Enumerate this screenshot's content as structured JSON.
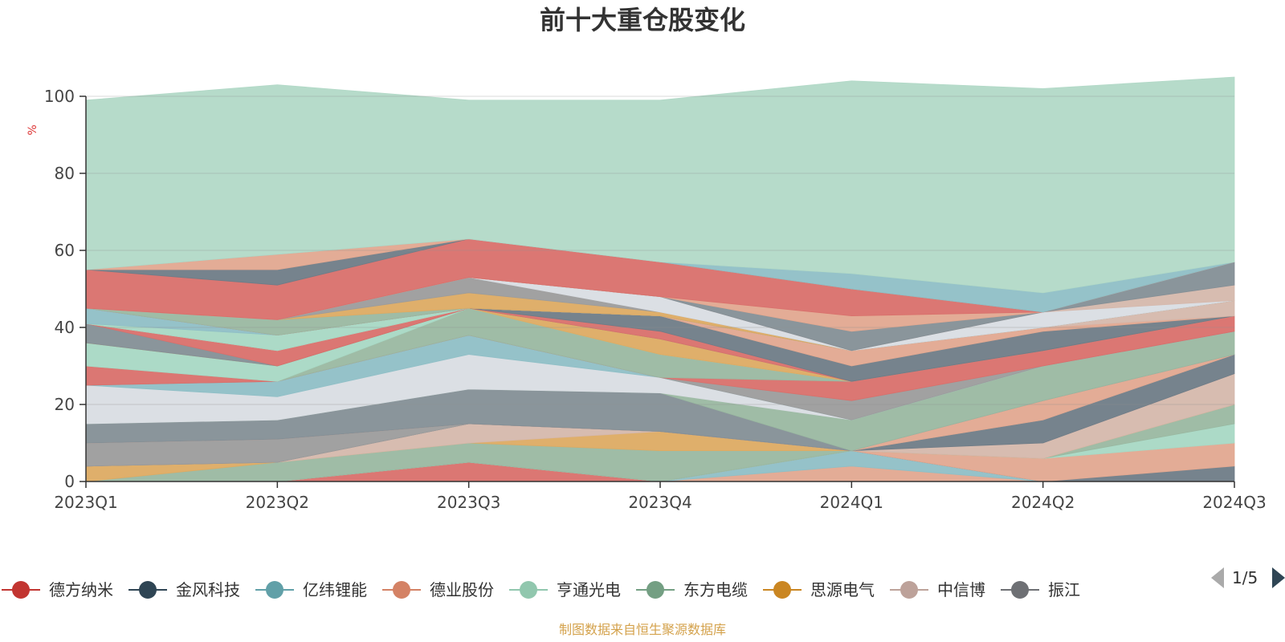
{
  "title": "前十大重仓股变化",
  "unit": "%",
  "source": "制图数据来自恒生聚源数据库",
  "pager": "1/5",
  "chart_data": {
    "type": "area",
    "stacked": true,
    "x": [
      "2023Q1",
      "2023Q2",
      "2023Q3",
      "2023Q4",
      "2024Q1",
      "2024Q2",
      "2024Q3"
    ],
    "ylim": [
      0,
      100
    ],
    "yticks": [
      "0",
      "20",
      "40",
      "60",
      "80",
      "100"
    ],
    "grid": true,
    "legend_position": "bottom",
    "series": [
      {
        "color": "#d9706c",
        "values": [
          0,
          0,
          5,
          0,
          0,
          0,
          0
        ]
      },
      {
        "color": "#e2a890",
        "values": [
          0,
          0,
          0,
          0,
          4,
          0,
          0
        ]
      },
      {
        "color": "#8fbfc6",
        "values": [
          0,
          0,
          0,
          0,
          4,
          0,
          0
        ]
      },
      {
        "color": "#6f7c87",
        "values": [
          0,
          0,
          0,
          0,
          0,
          0,
          4
        ]
      },
      {
        "color": "#e2a890",
        "values": [
          0,
          0,
          0,
          0,
          0,
          6,
          6
        ]
      },
      {
        "color": "#a8d8c4",
        "values": [
          0,
          0,
          0,
          0,
          0,
          0,
          5
        ]
      },
      {
        "color": "#9ab8a1",
        "values": [
          0,
          5,
          5,
          8,
          0,
          0,
          5
        ]
      },
      {
        "color": "#ddab63",
        "values": [
          4,
          0,
          0,
          5,
          0,
          0,
          0
        ]
      },
      {
        "color": "#d5b8ac",
        "values": [
          0,
          0,
          5,
          0,
          0,
          4,
          8
        ]
      },
      {
        "color": "#6f7c87",
        "values": [
          0,
          0,
          0,
          0,
          0,
          6,
          5
        ]
      },
      {
        "color": "#9c9c9c",
        "values": [
          6,
          6,
          0,
          0,
          0,
          0,
          0
        ]
      },
      {
        "color": "#e2a890",
        "values": [
          0,
          0,
          0,
          0,
          0,
          5,
          0
        ]
      },
      {
        "color": "#848f96",
        "values": [
          5,
          5,
          9,
          10,
          0,
          0,
          0
        ]
      },
      {
        "color": "#9ab8a1",
        "values": [
          0,
          0,
          0,
          0,
          8,
          9,
          6
        ]
      },
      {
        "color": "#d9dde3",
        "values": [
          10,
          6,
          9,
          4,
          0,
          0,
          0
        ]
      },
      {
        "color": "#8fbfc6",
        "values": [
          0,
          4,
          5,
          0,
          0,
          0,
          0
        ]
      },
      {
        "color": "#9c9c9c",
        "values": [
          0,
          0,
          0,
          0,
          5,
          0,
          0
        ]
      },
      {
        "color": "#d9706c",
        "values": [
          5,
          0,
          0,
          0,
          5,
          4,
          4
        ]
      },
      {
        "color": "#9ab8a1",
        "values": [
          0,
          0,
          7,
          6,
          0,
          0,
          0
        ]
      },
      {
        "color": "#a8d8c4",
        "values": [
          6,
          4,
          0,
          0,
          0,
          0,
          0
        ]
      },
      {
        "color": "#ddab63",
        "values": [
          0,
          0,
          0,
          4,
          0,
          0,
          0
        ]
      },
      {
        "color": "#848f96",
        "values": [
          5,
          0,
          0,
          0,
          0,
          0,
          0
        ]
      },
      {
        "color": "#d9706c",
        "values": [
          0,
          4,
          0,
          2,
          0,
          0,
          0
        ]
      },
      {
        "color": "#6f7c87",
        "values": [
          0,
          0,
          0,
          4,
          4,
          5,
          0
        ]
      },
      {
        "color": "#e2a890",
        "values": [
          0,
          0,
          0,
          0,
          4,
          1,
          0
        ]
      },
      {
        "color": "#d5b8ac",
        "values": [
          0,
          0,
          0,
          0,
          0,
          0,
          4
        ]
      },
      {
        "color": "#a8d8c4",
        "values": [
          0,
          4,
          0,
          0,
          0,
          0,
          0
        ]
      },
      {
        "color": "#8fbfc6",
        "values": [
          4,
          0,
          0,
          0,
          0,
          0,
          0
        ]
      },
      {
        "color": "#d9706c",
        "values": [
          0,
          0,
          0,
          0,
          0,
          0,
          0
        ]
      },
      {
        "color": "#9ab8a1",
        "values": [
          0,
          4,
          0,
          0,
          0,
          0,
          0
        ]
      },
      {
        "color": "#ddab63",
        "values": [
          0,
          0,
          4,
          1,
          0,
          0,
          0
        ]
      },
      {
        "color": "#9c9c9c",
        "values": [
          0,
          0,
          4,
          0,
          0,
          0,
          0
        ]
      },
      {
        "color": "#d9dde3",
        "values": [
          0,
          0,
          0,
          4,
          0,
          4,
          0
        ]
      },
      {
        "color": "#d5b8ac",
        "values": [
          0,
          0,
          0,
          0,
          0,
          0,
          4
        ]
      },
      {
        "color": "#848f96",
        "values": [
          0,
          0,
          0,
          0,
          5,
          0,
          6
        ]
      },
      {
        "color": "#e2a890",
        "values": [
          0,
          0,
          0,
          0,
          4,
          0,
          0
        ]
      },
      {
        "color": "#d9706c",
        "values": [
          10,
          9,
          10,
          9,
          7,
          0,
          0
        ]
      },
      {
        "color": "#6f7c87",
        "values": [
          0,
          4,
          0,
          0,
          0,
          0,
          0
        ]
      },
      {
        "color": "#e2a890",
        "values": [
          0,
          4,
          0,
          0,
          0,
          0,
          0
        ]
      },
      {
        "color": "#8fbfc6",
        "values": [
          0,
          0,
          0,
          0,
          4,
          5,
          0
        ]
      },
      {
        "color": "#b2d9c7",
        "values": [
          44,
          44,
          36,
          42,
          50,
          53,
          48
        ]
      }
    ],
    "legend": [
      {
        "name": "德方纳米",
        "color": "#c23531"
      },
      {
        "name": "金风科技",
        "color": "#2f4554"
      },
      {
        "name": "亿纬锂能",
        "color": "#61a0a8"
      },
      {
        "name": "德业股份",
        "color": "#d48265"
      },
      {
        "name": "亨通光电",
        "color": "#91c7ae"
      },
      {
        "name": "东方电缆",
        "color": "#749f83"
      },
      {
        "name": "思源电气",
        "color": "#ca8622"
      },
      {
        "name": "中信博",
        "color": "#bda29a"
      },
      {
        "name": "振江",
        "color": "#6e7074"
      }
    ]
  }
}
